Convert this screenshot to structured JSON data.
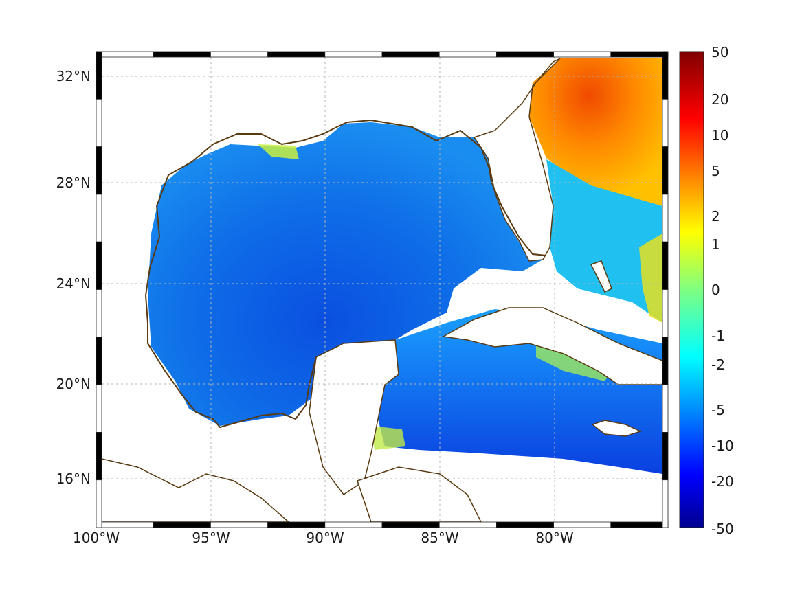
{
  "map": {
    "lon_range": [
      -100,
      -75
    ],
    "lat_range": [
      14.3,
      33
    ],
    "lon_ticks": [
      {
        "value": -100,
        "label": "100°W"
      },
      {
        "value": -95,
        "label": "95°W"
      },
      {
        "value": -90,
        "label": "90°W"
      },
      {
        "value": -85,
        "label": "85°W"
      },
      {
        "value": -80,
        "label": "80°W"
      }
    ],
    "lat_ticks": [
      {
        "value": 32,
        "label": "32°N"
      },
      {
        "value": 28,
        "label": "28°N"
      },
      {
        "value": 24,
        "label": "24°N"
      },
      {
        "value": 20,
        "label": "20°N"
      },
      {
        "value": 16,
        "label": "16°N"
      }
    ],
    "grid": true,
    "frame_style": "alternating black-white",
    "coastline_color": "#5a3a10",
    "colormap": "jet",
    "colorbar": {
      "placement": "right",
      "ticks": [
        {
          "value": 50,
          "label": "50"
        },
        {
          "value": 20,
          "label": "20"
        },
        {
          "value": 10,
          "label": "10"
        },
        {
          "value": 5,
          "label": "5"
        },
        {
          "value": 2,
          "label": "2"
        },
        {
          "value": 1,
          "label": "1"
        },
        {
          "value": 0,
          "label": "0"
        },
        {
          "value": -1,
          "label": "-1"
        },
        {
          "value": -2,
          "label": "-2"
        },
        {
          "value": -5,
          "label": "-5"
        },
        {
          "value": -10,
          "label": "-10"
        },
        {
          "value": -20,
          "label": "-20"
        },
        {
          "value": -50,
          "label": "-50"
        }
      ]
    }
  }
}
